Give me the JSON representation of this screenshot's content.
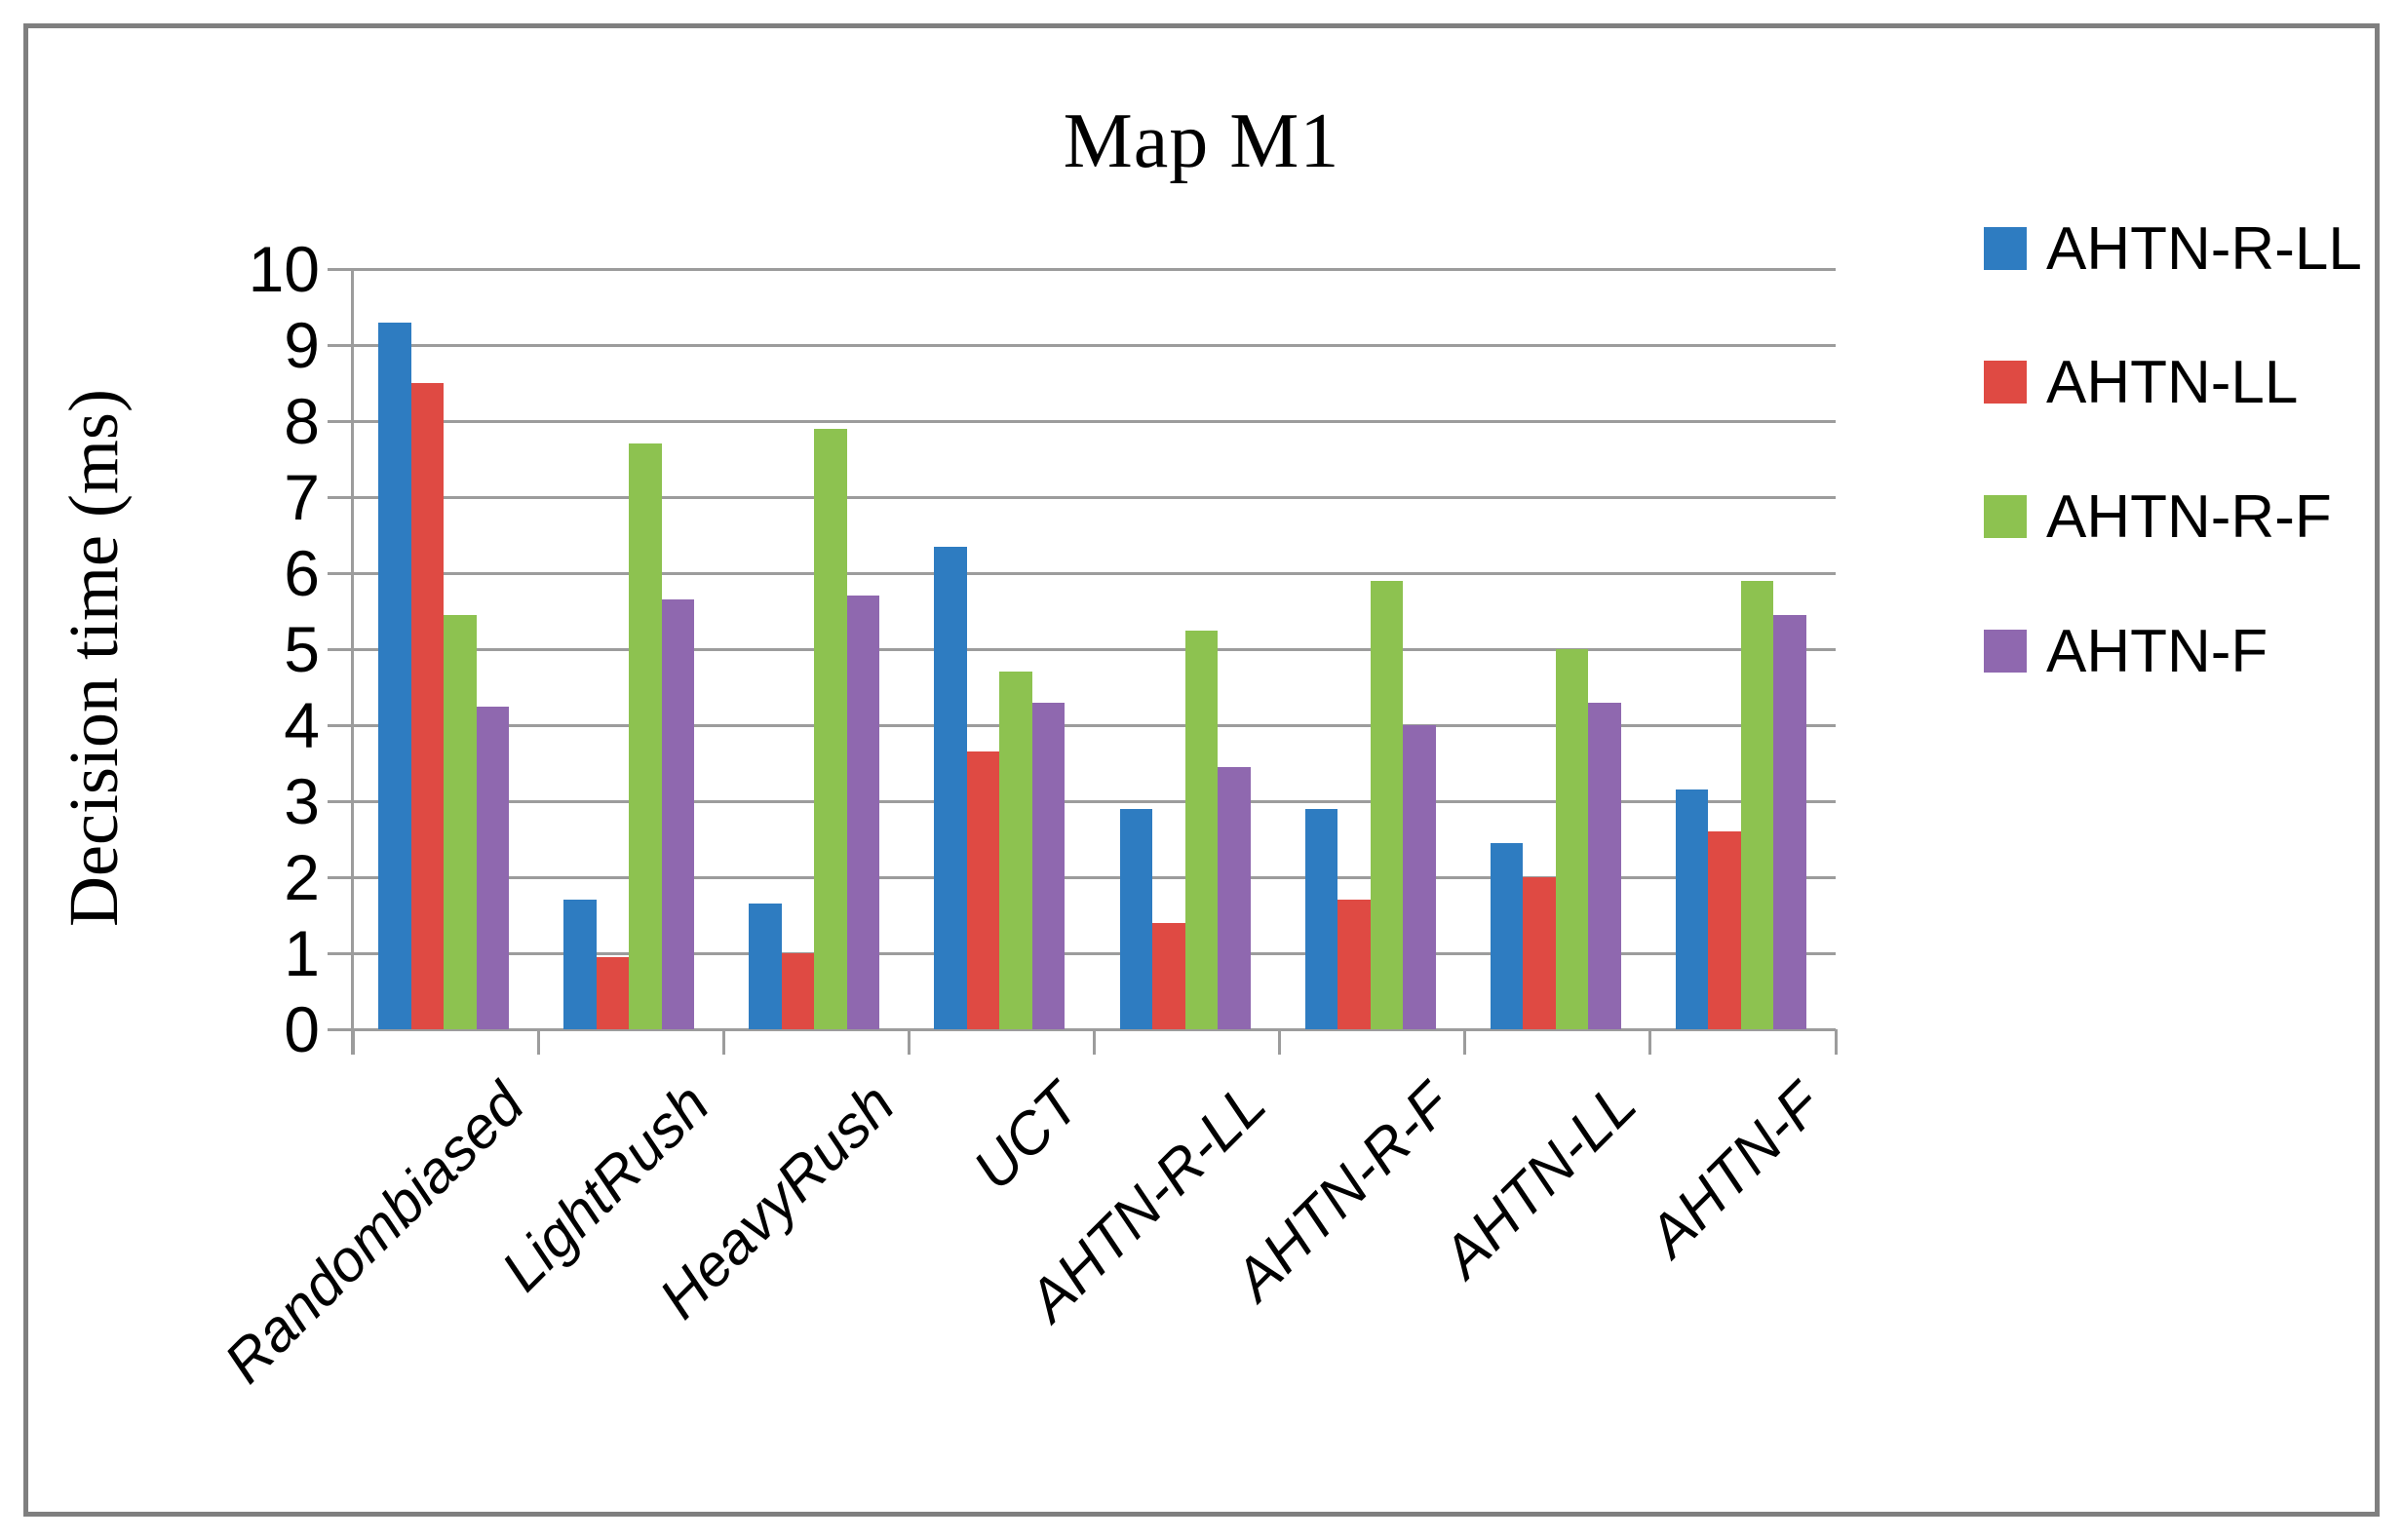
{
  "title": "Map M1",
  "y_axis": {
    "label": "Decision time (ms)",
    "tick_labels": [
      "0",
      "1",
      "2",
      "3",
      "4",
      "5",
      "6",
      "7",
      "8",
      "9",
      "10"
    ],
    "min": 0,
    "max": 10
  },
  "chart_data": {
    "type": "bar",
    "title": "Map M1",
    "xlabel": "",
    "ylabel": "Decision time (ms)",
    "ylim": [
      0,
      10
    ],
    "grid": true,
    "legend_position": "right",
    "categories": [
      "Randombiased",
      "LightRush",
      "HeavyRush",
      "UCT",
      "AHTN-R-LL",
      "AHTN-R-F",
      "AHTN-LL",
      "AHTN-F"
    ],
    "series": [
      {
        "name": "AHTN-R-LL",
        "color": "#2E7CC1",
        "values": [
          9.3,
          1.7,
          1.65,
          6.35,
          2.9,
          2.9,
          2.45,
          3.15
        ]
      },
      {
        "name": "AHTN-LL",
        "color": "#DF4A43",
        "values": [
          8.5,
          0.95,
          1.0,
          3.65,
          1.4,
          1.7,
          2.0,
          2.6
        ]
      },
      {
        "name": "AHTN-R-F",
        "color": "#8DC250",
        "values": [
          5.45,
          7.7,
          7.9,
          4.7,
          5.25,
          5.9,
          5.0,
          5.9
        ]
      },
      {
        "name": "AHTN-F",
        "color": "#8F68AF",
        "values": [
          4.25,
          5.65,
          5.7,
          4.3,
          3.45,
          4.0,
          4.3,
          5.45
        ]
      }
    ]
  },
  "colors": {
    "gridline": "#9C9C9C",
    "frame_border": "#7F7F7F",
    "text": "#000000",
    "background": "#FFFFFF"
  }
}
